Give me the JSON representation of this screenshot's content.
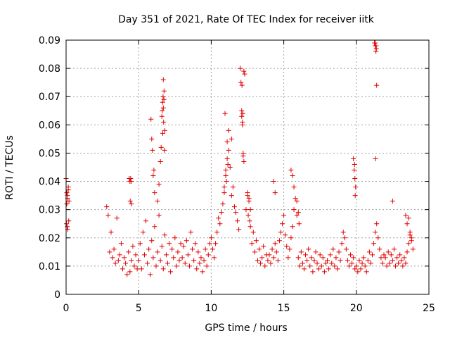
{
  "chart_data": {
    "type": "scatter",
    "title": "Day 351 of 2021, Rate Of TEC Index for receiver iitk",
    "xlabel": "GPS time / hours",
    "ylabel": "ROTI / TECUs",
    "xlim": [
      0,
      25
    ],
    "ylim": [
      0,
      0.09
    ],
    "xticks": [
      0,
      5,
      10,
      15,
      20,
      25
    ],
    "yticks": [
      0,
      0.01,
      0.02,
      0.03,
      0.04,
      0.05,
      0.06,
      0.07,
      0.08,
      0.09
    ],
    "ytick_labels": [
      "0",
      "0.01",
      "0.02",
      "0.03",
      "0.04",
      "0.05",
      "0.06",
      "0.07",
      "0.08",
      "0.09"
    ],
    "xtick_labels": [
      "0",
      "5",
      "10",
      "15",
      "20",
      "25"
    ],
    "grid": true,
    "marker": "plus",
    "series_color": "#e00000",
    "series": [
      {
        "x": [
          0.0,
          0.05,
          0.1,
          0.15,
          0.2,
          0.02,
          0.08,
          0.12,
          0.18,
          0.05,
          0.1,
          0.15,
          2.8,
          2.9,
          3.0,
          3.1,
          3.2,
          3.3,
          3.4,
          3.5,
          3.6,
          3.7,
          3.8,
          3.9,
          4.0,
          4.1,
          4.2,
          4.3,
          4.4,
          4.5,
          4.6,
          4.7,
          4.8,
          4.9,
          4.35,
          4.4,
          4.45,
          4.5,
          4.42,
          4.48,
          5.0,
          5.1,
          5.2,
          5.3,
          5.4,
          5.5,
          5.6,
          5.7,
          5.8,
          5.9,
          6.0,
          6.1,
          6.2,
          6.3,
          6.4,
          6.5,
          6.6,
          6.7,
          6.8,
          6.9,
          7.0,
          7.1,
          7.2,
          7.3,
          7.4,
          7.5,
          7.6,
          7.7,
          7.8,
          7.9,
          5.85,
          5.9,
          5.95,
          6.0,
          6.05,
          6.1,
          6.3,
          6.4,
          6.5,
          6.55,
          6.6,
          6.65,
          6.7,
          6.75,
          6.8,
          6.62,
          6.68,
          6.72,
          6.78,
          6.7,
          6.66,
          6.74,
          8.0,
          8.1,
          8.2,
          8.3,
          8.4,
          8.5,
          8.6,
          8.7,
          8.8,
          8.9,
          9.0,
          9.1,
          9.2,
          9.3,
          9.4,
          9.5,
          9.6,
          9.7,
          9.8,
          9.9,
          10.0,
          10.1,
          10.2,
          10.3,
          10.4,
          10.5,
          10.6,
          10.7,
          10.8,
          10.9,
          11.0,
          11.1,
          11.2,
          11.3,
          11.4,
          11.5,
          11.6,
          11.7,
          11.8,
          11.9,
          10.9,
          11.0,
          11.1,
          11.2,
          11.4,
          11.05,
          11.15,
          10.95,
          12.0,
          12.05,
          12.1,
          12.15,
          12.2,
          12.25,
          12.3,
          12.1,
          12.15,
          12.2,
          12.25,
          12.12,
          12.18,
          12.4,
          12.5,
          12.6,
          12.7,
          12.8,
          12.9,
          13.0,
          13.1,
          13.2,
          13.3,
          13.4,
          13.5,
          13.6,
          13.7,
          13.8,
          13.9,
          12.5,
          12.6,
          12.7,
          12.55,
          12.65,
          14.0,
          14.1,
          14.2,
          14.3,
          14.4,
          14.5,
          14.6,
          14.7,
          14.8,
          14.9,
          15.0,
          15.1,
          15.2,
          15.3,
          15.4,
          15.5,
          15.6,
          15.7,
          15.8,
          15.9,
          14.3,
          14.4,
          15.5,
          15.6,
          15.7,
          15.9,
          16.0,
          16.05,
          16.0,
          16.1,
          16.2,
          16.3,
          16.4,
          16.5,
          16.6,
          16.7,
          16.8,
          16.9,
          17.0,
          17.1,
          17.2,
          17.3,
          17.4,
          17.5,
          17.6,
          17.7,
          17.8,
          17.9,
          18.0,
          18.1,
          18.2,
          18.3,
          18.4,
          18.5,
          18.6,
          18.7,
          18.8,
          18.9,
          19.0,
          19.1,
          19.2,
          19.3,
          19.4,
          19.5,
          19.6,
          19.7,
          19.8,
          19.9,
          19.8,
          19.85,
          19.9,
          19.95,
          19.88,
          19.92,
          20.0,
          20.1,
          20.2,
          20.3,
          20.4,
          20.5,
          20.6,
          20.7,
          20.8,
          20.9,
          21.0,
          21.1,
          21.2,
          21.3,
          21.4,
          21.5,
          21.6,
          21.7,
          21.8,
          21.9,
          21.25,
          21.3,
          21.35,
          21.4,
          21.32,
          21.38,
          21.3,
          21.36,
          22.0,
          22.1,
          22.2,
          22.3,
          22.4,
          22.5,
          22.6,
          22.7,
          22.8,
          22.9,
          23.0,
          23.1,
          23.2,
          23.3,
          23.4,
          23.5,
          23.6,
          23.7,
          23.8,
          23.9,
          22.5,
          23.4,
          23.5,
          23.6,
          23.7,
          23.8
        ],
        "y": [
          0.041,
          0.036,
          0.034,
          0.037,
          0.033,
          0.025,
          0.024,
          0.023,
          0.026,
          0.032,
          0.035,
          0.038,
          0.031,
          0.028,
          0.015,
          0.022,
          0.013,
          0.016,
          0.011,
          0.027,
          0.012,
          0.014,
          0.018,
          0.009,
          0.013,
          0.011,
          0.007,
          0.015,
          0.008,
          0.012,
          0.017,
          0.01,
          0.014,
          0.009,
          0.041,
          0.04,
          0.041,
          0.032,
          0.033,
          0.04,
          0.012,
          0.018,
          0.009,
          0.022,
          0.014,
          0.026,
          0.011,
          0.016,
          0.007,
          0.019,
          0.013,
          0.024,
          0.01,
          0.015,
          0.028,
          0.012,
          0.017,
          0.009,
          0.021,
          0.014,
          0.011,
          0.018,
          0.008,
          0.016,
          0.013,
          0.02,
          0.01,
          0.015,
          0.012,
          0.018,
          0.062,
          0.055,
          0.051,
          0.042,
          0.044,
          0.036,
          0.033,
          0.039,
          0.047,
          0.052,
          0.063,
          0.068,
          0.076,
          0.072,
          0.058,
          0.065,
          0.07,
          0.061,
          0.051,
          0.066,
          0.057,
          0.069,
          0.013,
          0.017,
          0.011,
          0.019,
          0.014,
          0.01,
          0.022,
          0.016,
          0.012,
          0.018,
          0.009,
          0.015,
          0.011,
          0.013,
          0.008,
          0.012,
          0.016,
          0.01,
          0.014,
          0.018,
          0.02,
          0.016,
          0.013,
          0.018,
          0.022,
          0.027,
          0.025,
          0.029,
          0.032,
          0.036,
          0.042,
          0.048,
          0.051,
          0.045,
          0.035,
          0.038,
          0.031,
          0.029,
          0.026,
          0.023,
          0.038,
          0.044,
          0.054,
          0.058,
          0.055,
          0.04,
          0.046,
          0.064,
          0.08,
          0.075,
          0.065,
          0.061,
          0.05,
          0.047,
          0.078,
          0.063,
          0.06,
          0.049,
          0.079,
          0.074,
          0.064,
          0.03,
          0.035,
          0.033,
          0.024,
          0.018,
          0.022,
          0.015,
          0.019,
          0.012,
          0.016,
          0.011,
          0.013,
          0.017,
          0.01,
          0.014,
          0.012,
          0.036,
          0.034,
          0.03,
          0.028,
          0.026,
          0.014,
          0.011,
          0.016,
          0.013,
          0.018,
          0.015,
          0.012,
          0.019,
          0.022,
          0.025,
          0.028,
          0.021,
          0.017,
          0.013,
          0.016,
          0.02,
          0.024,
          0.03,
          0.034,
          0.028,
          0.04,
          0.036,
          0.044,
          0.042,
          0.038,
          0.033,
          0.029,
          0.025,
          0.013,
          0.01,
          0.015,
          0.011,
          0.009,
          0.014,
          0.012,
          0.016,
          0.01,
          0.013,
          0.008,
          0.012,
          0.015,
          0.011,
          0.009,
          0.014,
          0.01,
          0.013,
          0.008,
          0.011,
          0.012,
          0.009,
          0.014,
          0.011,
          0.016,
          0.01,
          0.013,
          0.009,
          0.015,
          0.012,
          0.018,
          0.022,
          0.02,
          0.016,
          0.012,
          0.01,
          0.014,
          0.011,
          0.013,
          0.009,
          0.048,
          0.044,
          0.041,
          0.038,
          0.046,
          0.035,
          0.01,
          0.008,
          0.012,
          0.009,
          0.011,
          0.013,
          0.01,
          0.008,
          0.012,
          0.015,
          0.011,
          0.014,
          0.018,
          0.022,
          0.025,
          0.02,
          0.016,
          0.013,
          0.011,
          0.014,
          0.089,
          0.088,
          0.086,
          0.074,
          0.048,
          0.087,
          0.089,
          0.088,
          0.013,
          0.01,
          0.015,
          0.011,
          0.014,
          0.012,
          0.016,
          0.01,
          0.013,
          0.011,
          0.014,
          0.012,
          0.01,
          0.013,
          0.011,
          0.015,
          0.018,
          0.021,
          0.019,
          0.016,
          0.033,
          0.028,
          0.025,
          0.027,
          0.022,
          0.02
        ]
      }
    ]
  }
}
